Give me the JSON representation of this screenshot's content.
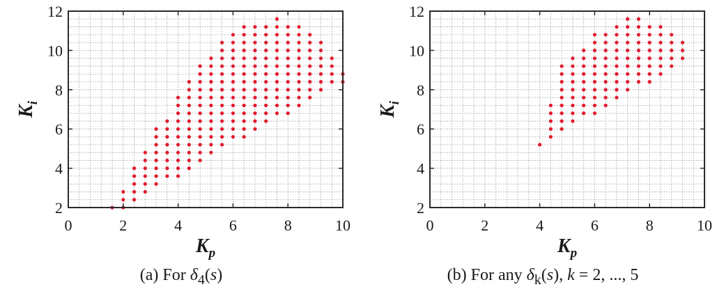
{
  "chart_data": [
    {
      "type": "scatter",
      "panel": "a",
      "xlabel": "K",
      "xlabel_sub": "p",
      "ylabel": "K",
      "ylabel_sub": "i",
      "xlim": [
        0,
        10
      ],
      "ylim": [
        2,
        12
      ],
      "xticks": [
        0,
        2,
        4,
        6,
        8,
        10
      ],
      "yticks": [
        2,
        4,
        6,
        8,
        10,
        12
      ],
      "grid": true,
      "marker_color": "#e31a2d",
      "caption": {
        "prefix": "(a) For ",
        "symbol": "δ",
        "sub": "4",
        "open": "(",
        "var": "s",
        "close": ")"
      },
      "points": [
        [
          1.6,
          2.0
        ],
        [
          2.0,
          2.0
        ],
        [
          2.0,
          2.4
        ],
        [
          2.0,
          2.8
        ],
        [
          2.4,
          2.4
        ],
        [
          2.4,
          2.8
        ],
        [
          2.4,
          3.2
        ],
        [
          2.4,
          3.6
        ],
        [
          2.4,
          4.0
        ],
        [
          2.8,
          2.8
        ],
        [
          2.8,
          3.2
        ],
        [
          2.8,
          3.6
        ],
        [
          2.8,
          4.0
        ],
        [
          2.8,
          4.4
        ],
        [
          2.8,
          4.8
        ],
        [
          3.2,
          3.2
        ],
        [
          3.2,
          3.6
        ],
        [
          3.2,
          4.0
        ],
        [
          3.2,
          4.4
        ],
        [
          3.2,
          4.8
        ],
        [
          3.2,
          5.2
        ],
        [
          3.2,
          5.6
        ],
        [
          3.2,
          6.0
        ],
        [
          3.6,
          3.6
        ],
        [
          3.6,
          4.0
        ],
        [
          3.6,
          4.4
        ],
        [
          3.6,
          4.8
        ],
        [
          3.6,
          5.2
        ],
        [
          3.6,
          5.6
        ],
        [
          3.6,
          6.0
        ],
        [
          3.6,
          6.4
        ],
        [
          4.0,
          3.6
        ],
        [
          4.0,
          4.0
        ],
        [
          4.0,
          4.4
        ],
        [
          4.0,
          4.8
        ],
        [
          4.0,
          5.2
        ],
        [
          4.0,
          5.6
        ],
        [
          4.0,
          6.0
        ],
        [
          4.0,
          6.4
        ],
        [
          4.0,
          6.8
        ],
        [
          4.0,
          7.2
        ],
        [
          4.0,
          7.6
        ],
        [
          4.4,
          4.0
        ],
        [
          4.4,
          4.4
        ],
        [
          4.4,
          4.8
        ],
        [
          4.4,
          5.2
        ],
        [
          4.4,
          5.6
        ],
        [
          4.4,
          6.0
        ],
        [
          4.4,
          6.4
        ],
        [
          4.4,
          6.8
        ],
        [
          4.4,
          7.2
        ],
        [
          4.4,
          7.6
        ],
        [
          4.4,
          8.0
        ],
        [
          4.4,
          8.4
        ],
        [
          4.8,
          4.4
        ],
        [
          4.8,
          4.8
        ],
        [
          4.8,
          5.2
        ],
        [
          4.8,
          5.6
        ],
        [
          4.8,
          6.0
        ],
        [
          4.8,
          6.4
        ],
        [
          4.8,
          6.8
        ],
        [
          4.8,
          7.2
        ],
        [
          4.8,
          7.6
        ],
        [
          4.8,
          8.0
        ],
        [
          4.8,
          8.4
        ],
        [
          4.8,
          8.8
        ],
        [
          4.8,
          9.2
        ],
        [
          5.2,
          4.8
        ],
        [
          5.2,
          5.2
        ],
        [
          5.2,
          5.6
        ],
        [
          5.2,
          6.0
        ],
        [
          5.2,
          6.4
        ],
        [
          5.2,
          6.8
        ],
        [
          5.2,
          7.2
        ],
        [
          5.2,
          7.6
        ],
        [
          5.2,
          8.0
        ],
        [
          5.2,
          8.4
        ],
        [
          5.2,
          8.8
        ],
        [
          5.2,
          9.2
        ],
        [
          5.2,
          9.6
        ],
        [
          5.6,
          5.2
        ],
        [
          5.6,
          5.6
        ],
        [
          5.6,
          6.0
        ],
        [
          5.6,
          6.4
        ],
        [
          5.6,
          6.8
        ],
        [
          5.6,
          7.2
        ],
        [
          5.6,
          7.6
        ],
        [
          5.6,
          8.0
        ],
        [
          5.6,
          8.4
        ],
        [
          5.6,
          8.8
        ],
        [
          5.6,
          9.2
        ],
        [
          5.6,
          9.6
        ],
        [
          5.6,
          10.0
        ],
        [
          5.6,
          10.4
        ],
        [
          6.0,
          5.6
        ],
        [
          6.0,
          6.0
        ],
        [
          6.0,
          6.4
        ],
        [
          6.0,
          6.8
        ],
        [
          6.0,
          7.2
        ],
        [
          6.0,
          7.6
        ],
        [
          6.0,
          8.0
        ],
        [
          6.0,
          8.4
        ],
        [
          6.0,
          8.8
        ],
        [
          6.0,
          9.2
        ],
        [
          6.0,
          9.6
        ],
        [
          6.0,
          10.0
        ],
        [
          6.0,
          10.4
        ],
        [
          6.0,
          10.8
        ],
        [
          6.4,
          5.6
        ],
        [
          6.4,
          6.0
        ],
        [
          6.4,
          6.4
        ],
        [
          6.4,
          6.8
        ],
        [
          6.4,
          7.2
        ],
        [
          6.4,
          7.6
        ],
        [
          6.4,
          8.0
        ],
        [
          6.4,
          8.4
        ],
        [
          6.4,
          8.8
        ],
        [
          6.4,
          9.2
        ],
        [
          6.4,
          9.6
        ],
        [
          6.4,
          10.0
        ],
        [
          6.4,
          10.4
        ],
        [
          6.4,
          10.8
        ],
        [
          6.4,
          11.2
        ],
        [
          6.8,
          6.0
        ],
        [
          6.8,
          6.4
        ],
        [
          6.8,
          6.8
        ],
        [
          6.8,
          7.2
        ],
        [
          6.8,
          7.6
        ],
        [
          6.8,
          8.0
        ],
        [
          6.8,
          8.4
        ],
        [
          6.8,
          8.8
        ],
        [
          6.8,
          9.2
        ],
        [
          6.8,
          9.6
        ],
        [
          6.8,
          10.0
        ],
        [
          6.8,
          10.4
        ],
        [
          6.8,
          10.8
        ],
        [
          6.8,
          11.2
        ],
        [
          7.2,
          6.4
        ],
        [
          7.2,
          6.8
        ],
        [
          7.2,
          7.2
        ],
        [
          7.2,
          7.6
        ],
        [
          7.2,
          8.0
        ],
        [
          7.2,
          8.4
        ],
        [
          7.2,
          8.8
        ],
        [
          7.2,
          9.2
        ],
        [
          7.2,
          9.6
        ],
        [
          7.2,
          10.0
        ],
        [
          7.2,
          10.4
        ],
        [
          7.2,
          10.8
        ],
        [
          7.2,
          11.2
        ],
        [
          7.6,
          6.8
        ],
        [
          7.6,
          7.2
        ],
        [
          7.6,
          7.6
        ],
        [
          7.6,
          8.0
        ],
        [
          7.6,
          8.4
        ],
        [
          7.6,
          8.8
        ],
        [
          7.6,
          9.2
        ],
        [
          7.6,
          9.6
        ],
        [
          7.6,
          10.0
        ],
        [
          7.6,
          10.4
        ],
        [
          7.6,
          10.8
        ],
        [
          7.6,
          11.2
        ],
        [
          7.6,
          11.6
        ],
        [
          8.0,
          6.8
        ],
        [
          8.0,
          7.2
        ],
        [
          8.0,
          7.6
        ],
        [
          8.0,
          8.0
        ],
        [
          8.0,
          8.4
        ],
        [
          8.0,
          8.8
        ],
        [
          8.0,
          9.2
        ],
        [
          8.0,
          9.6
        ],
        [
          8.0,
          10.0
        ],
        [
          8.0,
          10.4
        ],
        [
          8.0,
          10.8
        ],
        [
          8.0,
          11.2
        ],
        [
          8.4,
          7.2
        ],
        [
          8.4,
          7.6
        ],
        [
          8.4,
          8.0
        ],
        [
          8.4,
          8.4
        ],
        [
          8.4,
          8.8
        ],
        [
          8.4,
          9.2
        ],
        [
          8.4,
          9.6
        ],
        [
          8.4,
          10.0
        ],
        [
          8.4,
          10.4
        ],
        [
          8.4,
          10.8
        ],
        [
          8.4,
          11.2
        ],
        [
          8.8,
          7.6
        ],
        [
          8.8,
          8.0
        ],
        [
          8.8,
          8.4
        ],
        [
          8.8,
          8.8
        ],
        [
          8.8,
          9.2
        ],
        [
          8.8,
          9.6
        ],
        [
          8.8,
          10.0
        ],
        [
          8.8,
          10.4
        ],
        [
          8.8,
          10.8
        ],
        [
          9.2,
          8.0
        ],
        [
          9.2,
          8.4
        ],
        [
          9.2,
          8.8
        ],
        [
          9.2,
          9.2
        ],
        [
          9.2,
          9.6
        ],
        [
          9.2,
          10.0
        ],
        [
          9.2,
          10.4
        ],
        [
          9.6,
          8.4
        ],
        [
          9.6,
          8.8
        ],
        [
          9.6,
          9.2
        ],
        [
          9.6,
          9.6
        ],
        [
          10.0,
          8.4
        ],
        [
          10.0,
          8.8
        ]
      ]
    },
    {
      "type": "scatter",
      "panel": "b",
      "xlabel": "K",
      "xlabel_sub": "p",
      "ylabel": "K",
      "ylabel_sub": "i",
      "xlim": [
        0,
        10
      ],
      "ylim": [
        2,
        12
      ],
      "xticks": [
        0,
        2,
        4,
        6,
        8,
        10
      ],
      "yticks": [
        2,
        4,
        6,
        8,
        10,
        12
      ],
      "grid": true,
      "marker_color": "#e31a2d",
      "caption": {
        "prefix": "(b) For any ",
        "symbol": "δ",
        "sub": "k",
        "open": "(",
        "var": "s",
        "close": ")",
        "suffix": ", ",
        "k": "k",
        "range": " = 2, ..., 5"
      },
      "points": [
        [
          4.0,
          5.2
        ],
        [
          4.4,
          5.6
        ],
        [
          4.4,
          6.0
        ],
        [
          4.4,
          6.4
        ],
        [
          4.4,
          6.8
        ],
        [
          4.4,
          7.2
        ],
        [
          4.8,
          6.0
        ],
        [
          4.8,
          6.4
        ],
        [
          4.8,
          6.8
        ],
        [
          4.8,
          7.2
        ],
        [
          4.8,
          7.6
        ],
        [
          4.8,
          8.0
        ],
        [
          4.8,
          8.4
        ],
        [
          4.8,
          8.8
        ],
        [
          4.8,
          9.2
        ],
        [
          5.2,
          6.4
        ],
        [
          5.2,
          6.8
        ],
        [
          5.2,
          7.2
        ],
        [
          5.2,
          7.6
        ],
        [
          5.2,
          8.0
        ],
        [
          5.2,
          8.4
        ],
        [
          5.2,
          8.8
        ],
        [
          5.2,
          9.2
        ],
        [
          5.2,
          9.6
        ],
        [
          5.6,
          6.8
        ],
        [
          5.6,
          7.2
        ],
        [
          5.6,
          7.6
        ],
        [
          5.6,
          8.0
        ],
        [
          5.6,
          8.4
        ],
        [
          5.6,
          8.8
        ],
        [
          5.6,
          9.2
        ],
        [
          5.6,
          9.6
        ],
        [
          5.6,
          10.0
        ],
        [
          6.0,
          6.8
        ],
        [
          6.0,
          7.2
        ],
        [
          6.0,
          7.6
        ],
        [
          6.0,
          8.0
        ],
        [
          6.0,
          8.4
        ],
        [
          6.0,
          8.8
        ],
        [
          6.0,
          9.2
        ],
        [
          6.0,
          9.6
        ],
        [
          6.0,
          10.0
        ],
        [
          6.0,
          10.4
        ],
        [
          6.0,
          10.8
        ],
        [
          6.4,
          7.2
        ],
        [
          6.4,
          7.6
        ],
        [
          6.4,
          8.0
        ],
        [
          6.4,
          8.4
        ],
        [
          6.4,
          8.8
        ],
        [
          6.4,
          9.2
        ],
        [
          6.4,
          9.6
        ],
        [
          6.4,
          10.0
        ],
        [
          6.4,
          10.4
        ],
        [
          6.4,
          10.8
        ],
        [
          6.8,
          7.6
        ],
        [
          6.8,
          8.0
        ],
        [
          6.8,
          8.4
        ],
        [
          6.8,
          8.8
        ],
        [
          6.8,
          9.2
        ],
        [
          6.8,
          9.6
        ],
        [
          6.8,
          10.0
        ],
        [
          6.8,
          10.4
        ],
        [
          6.8,
          10.8
        ],
        [
          6.8,
          11.2
        ],
        [
          7.2,
          8.0
        ],
        [
          7.2,
          8.4
        ],
        [
          7.2,
          8.8
        ],
        [
          7.2,
          9.2
        ],
        [
          7.2,
          9.6
        ],
        [
          7.2,
          10.0
        ],
        [
          7.2,
          10.4
        ],
        [
          7.2,
          10.8
        ],
        [
          7.2,
          11.2
        ],
        [
          7.2,
          11.6
        ],
        [
          7.6,
          8.4
        ],
        [
          7.6,
          8.8
        ],
        [
          7.6,
          9.2
        ],
        [
          7.6,
          9.6
        ],
        [
          7.6,
          10.0
        ],
        [
          7.6,
          10.4
        ],
        [
          7.6,
          10.8
        ],
        [
          7.6,
          11.2
        ],
        [
          7.6,
          11.6
        ],
        [
          8.0,
          8.4
        ],
        [
          8.0,
          8.8
        ],
        [
          8.0,
          9.2
        ],
        [
          8.0,
          9.6
        ],
        [
          8.0,
          10.0
        ],
        [
          8.0,
          10.4
        ],
        [
          8.0,
          10.8
        ],
        [
          8.0,
          11.2
        ],
        [
          8.4,
          8.8
        ],
        [
          8.4,
          9.2
        ],
        [
          8.4,
          9.6
        ],
        [
          8.4,
          10.0
        ],
        [
          8.4,
          10.4
        ],
        [
          8.4,
          10.8
        ],
        [
          8.4,
          11.2
        ],
        [
          8.8,
          9.2
        ],
        [
          8.8,
          9.6
        ],
        [
          8.8,
          10.0
        ],
        [
          8.8,
          10.4
        ],
        [
          8.8,
          10.8
        ],
        [
          9.2,
          9.6
        ],
        [
          9.2,
          10.0
        ],
        [
          9.2,
          10.4
        ]
      ]
    }
  ]
}
